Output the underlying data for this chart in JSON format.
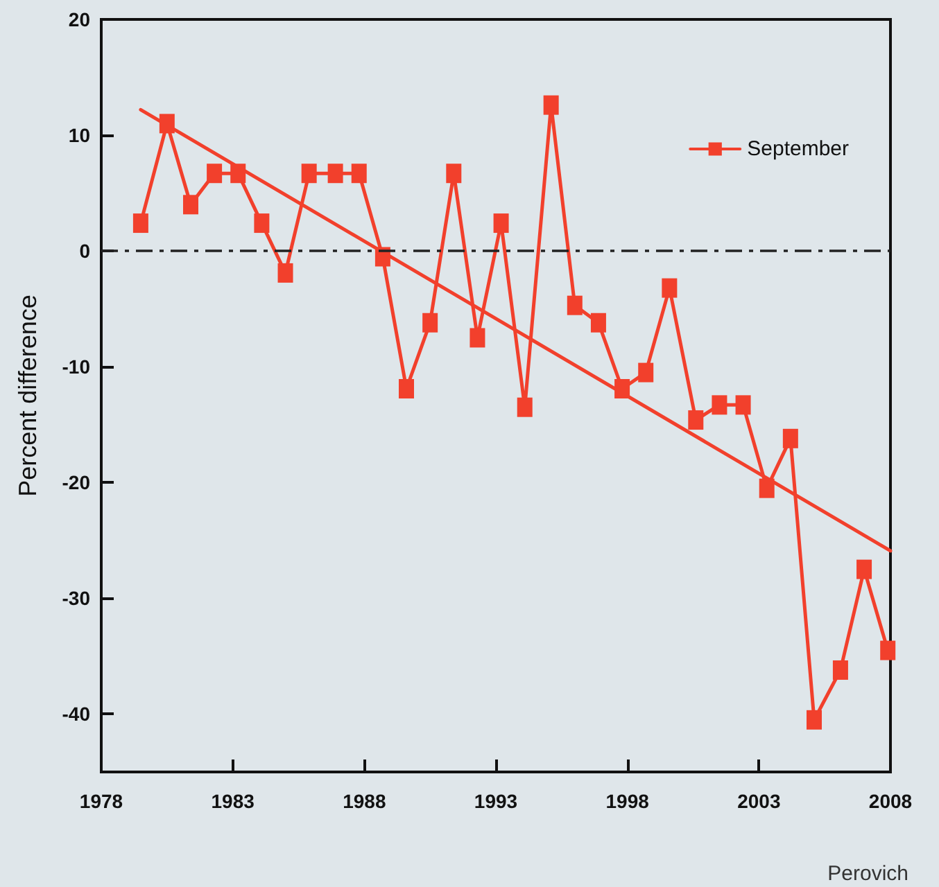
{
  "chart_data": {
    "type": "line",
    "ylabel": "Percent difference",
    "annotations": [
      "Perovich"
    ],
    "xlim": [
      1978,
      2008
    ],
    "xticks": [
      1978,
      1983,
      1988,
      1993,
      1998,
      2003,
      2008
    ],
    "ylim": [
      -45,
      20
    ],
    "yticks": [
      -40,
      -30,
      -20,
      -10,
      0,
      10,
      20
    ],
    "grid": false,
    "legend": "top right",
    "marker": "square",
    "line_style": "solid",
    "ref_lines": [
      {
        "axis": "y",
        "value": 0,
        "color": "#222222",
        "line_style": "dashed"
      }
    ],
    "series": [
      {
        "name": "September",
        "color": "#f2402c",
        "x": [
          1979.5,
          1980.5,
          1981.4,
          1982.3,
          1983.2,
          1984.1,
          1985.0,
          1985.9,
          1986.9,
          1987.8,
          1988.7,
          1989.6,
          1990.5,
          1991.4,
          1992.3,
          1993.2,
          1994.1,
          1995.1,
          1996.0,
          1996.9,
          1997.8,
          1998.7,
          1999.6,
          2000.6,
          2001.5,
          2002.4,
          2003.3,
          2004.2,
          2005.1,
          2006.1,
          2007.0,
          2007.9
        ],
        "values": [
          2.4,
          11.0,
          4.0,
          6.7,
          6.7,
          2.4,
          -1.9,
          6.7,
          6.7,
          6.7,
          -0.5,
          -11.9,
          -6.2,
          6.7,
          -7.5,
          2.4,
          -13.5,
          12.6,
          -4.7,
          -6.2,
          -11.9,
          -10.5,
          -3.2,
          -14.6,
          -13.3,
          -13.3,
          -20.5,
          -16.2,
          -40.5,
          -36.2,
          -27.5,
          -34.5
        ]
      },
      {
        "type": "line",
        "color": "#f2402c",
        "marker": "none",
        "x": [
          1979.5,
          2008
        ],
        "values": [
          12.2,
          -25.9
        ]
      }
    ]
  }
}
